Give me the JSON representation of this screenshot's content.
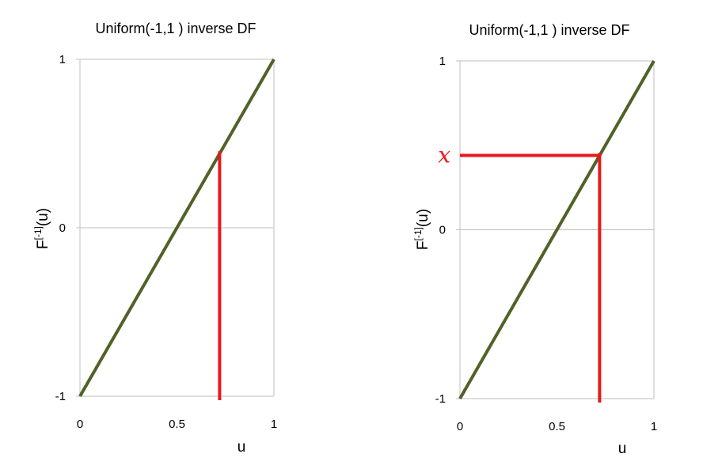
{
  "chart_data": [
    {
      "type": "line",
      "title": "Uniform(-1,1 ) inverse DF",
      "xlabel": "u",
      "ylabel": "F[-1](u)",
      "ylabel_base": "F",
      "ylabel_sup": "[-1]",
      "ylabel_arg": "(u)",
      "xlim": [
        0,
        1
      ],
      "ylim": [
        -1,
        1
      ],
      "x_ticks": [
        "0",
        "0.5",
        "1"
      ],
      "x_tick_values": [
        0,
        0.5,
        1
      ],
      "y_ticks": [
        "1",
        "0",
        "-1"
      ],
      "y_tick_values": [
        1,
        0,
        -1
      ],
      "series": [
        {
          "x": [
            0,
            1
          ],
          "y": [
            -1,
            1
          ],
          "color": "#4f6228"
        }
      ],
      "marker_u": 0.72,
      "show_horizontal": false,
      "marker_label": "",
      "marker_color": "#e8191b"
    },
    {
      "type": "line",
      "title": "Uniform(-1,1 ) inverse DF",
      "xlabel": "u",
      "ylabel": "F[-1](u)",
      "ylabel_base": "F",
      "ylabel_sup": "[-1]",
      "ylabel_arg": "(u)",
      "xlim": [
        0,
        1
      ],
      "ylim": [
        -1,
        1
      ],
      "x_ticks": [
        "0",
        "0.5",
        "1"
      ],
      "x_tick_values": [
        0,
        0.5,
        1
      ],
      "y_ticks": [
        "1",
        "0",
        "-1"
      ],
      "y_tick_values": [
        1,
        0,
        -1
      ],
      "series": [
        {
          "x": [
            0,
            1
          ],
          "y": [
            -1,
            1
          ],
          "color": "#4f6228"
        }
      ],
      "marker_u": 0.72,
      "show_horizontal": true,
      "marker_label": "x",
      "marker_color": "#e8191b"
    }
  ]
}
